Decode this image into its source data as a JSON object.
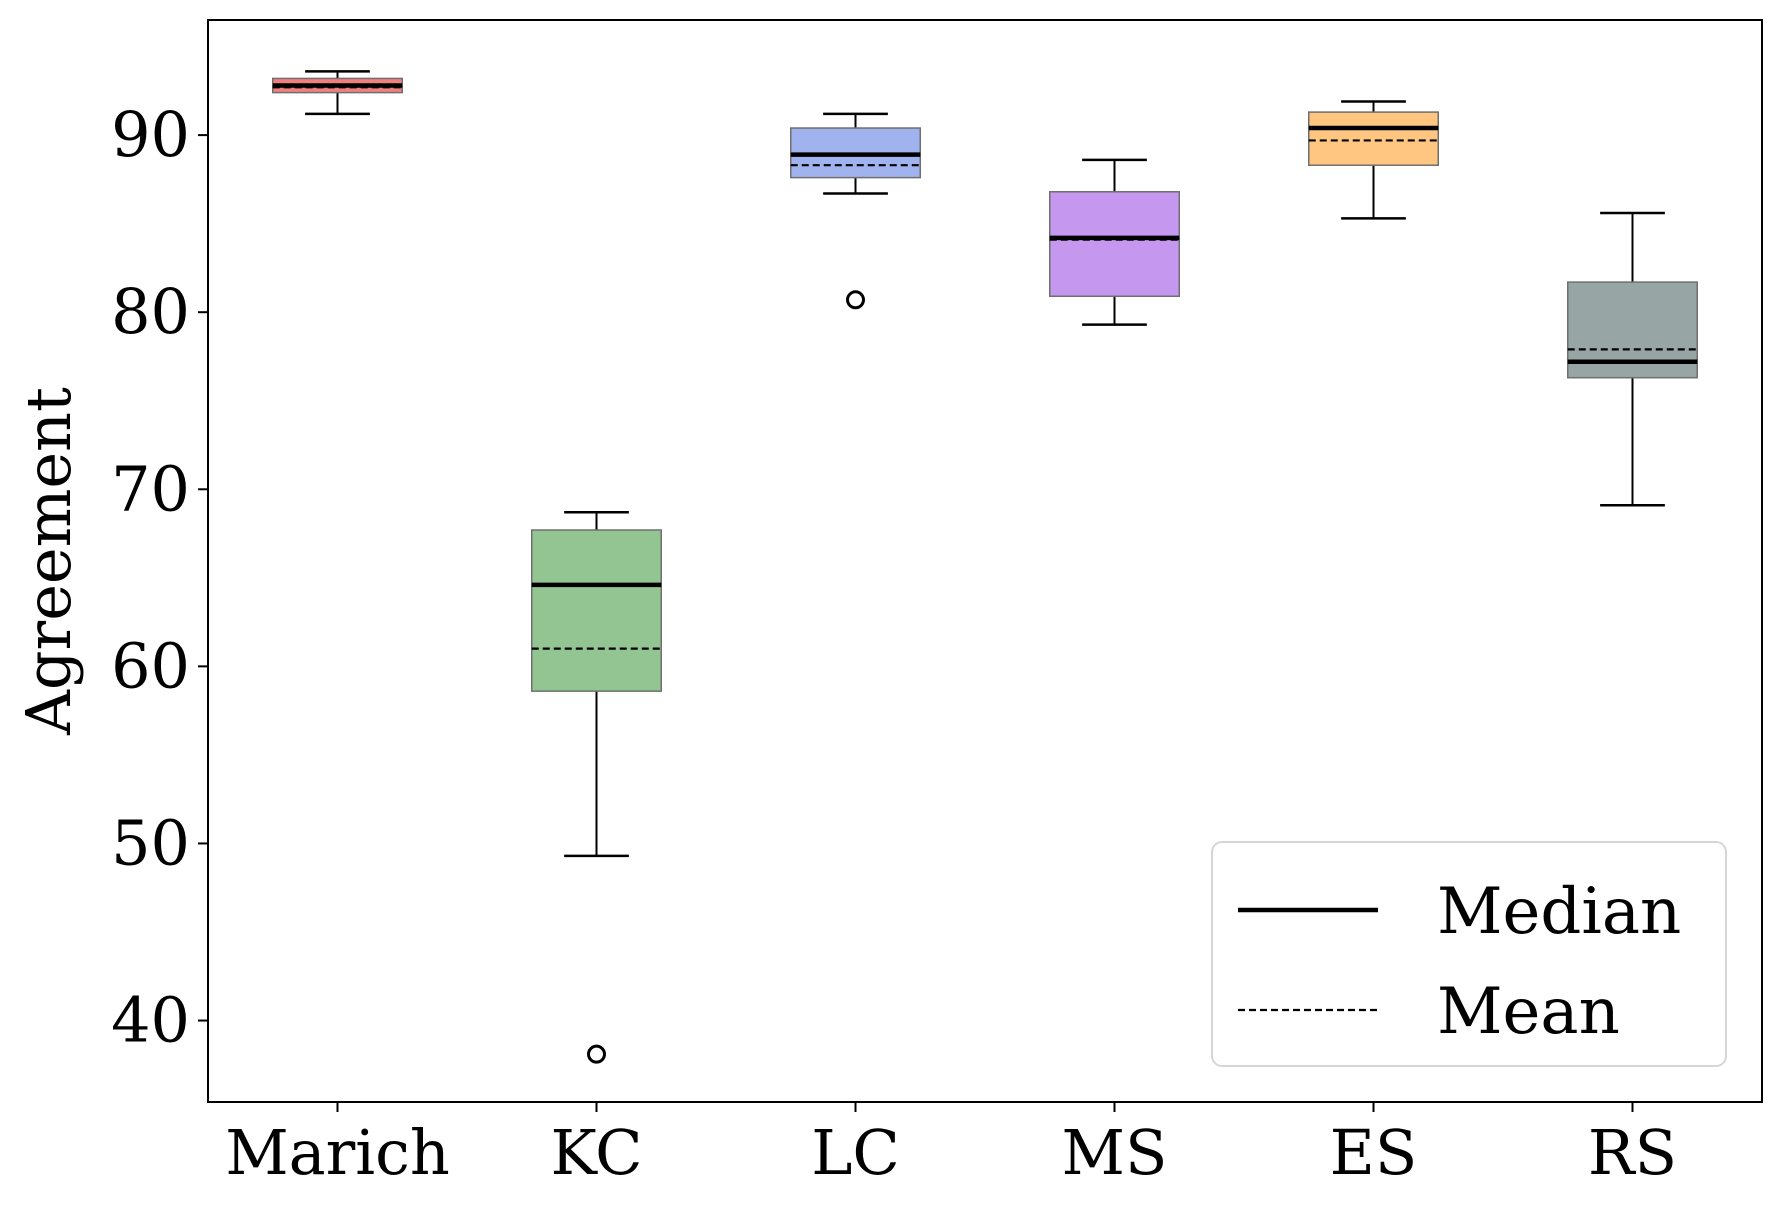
{
  "chart_data": {
    "type": "box",
    "title": "",
    "xlabel": "",
    "ylabel": "Agreement",
    "ylim": [
      35.4,
      96.5
    ],
    "yticks": [
      40,
      50,
      60,
      70,
      80,
      90
    ],
    "categories": [
      "Marich",
      "KC",
      "LC",
      "MS",
      "ES",
      "RS"
    ],
    "grid": false,
    "legend": {
      "placement": "lower-right",
      "entries": [
        {
          "label": "Median",
          "style": "solid"
        },
        {
          "label": "Mean",
          "style": "dashed"
        }
      ]
    },
    "series": [
      {
        "category": "Marich",
        "whisker_low": 91.2,
        "q1": 92.4,
        "median": 92.8,
        "mean": 92.7,
        "q3": 93.2,
        "whisker_high": 93.6,
        "outliers": [],
        "color": "#f08080"
      },
      {
        "category": "KC",
        "whisker_low": 49.3,
        "q1": 58.6,
        "median": 64.6,
        "mean": 61.0,
        "q3": 67.7,
        "whisker_high": 68.7,
        "outliers": [
          38.1
        ],
        "color": "#93c592"
      },
      {
        "category": "LC",
        "whisker_low": 86.7,
        "q1": 87.6,
        "median": 88.9,
        "mean": 88.3,
        "q3": 90.4,
        "whisker_high": 91.2,
        "outliers": [
          80.7
        ],
        "color": "#a0b3ef"
      },
      {
        "category": "MS",
        "whisker_low": 79.3,
        "q1": 80.9,
        "median": 84.2,
        "mean": 84.1,
        "q3": 86.8,
        "whisker_high": 88.6,
        "outliers": [],
        "color": "#c597ef"
      },
      {
        "category": "ES",
        "whisker_low": 85.3,
        "q1": 88.3,
        "median": 90.4,
        "mean": 89.7,
        "q3": 91.3,
        "whisker_high": 91.9,
        "outliers": [],
        "color": "#ffc682"
      },
      {
        "category": "RS",
        "whisker_low": 69.1,
        "q1": 76.3,
        "median": 77.2,
        "mean": 77.9,
        "q3": 81.7,
        "whisker_high": 85.6,
        "outliers": [],
        "color": "#97a6a5"
      }
    ]
  }
}
